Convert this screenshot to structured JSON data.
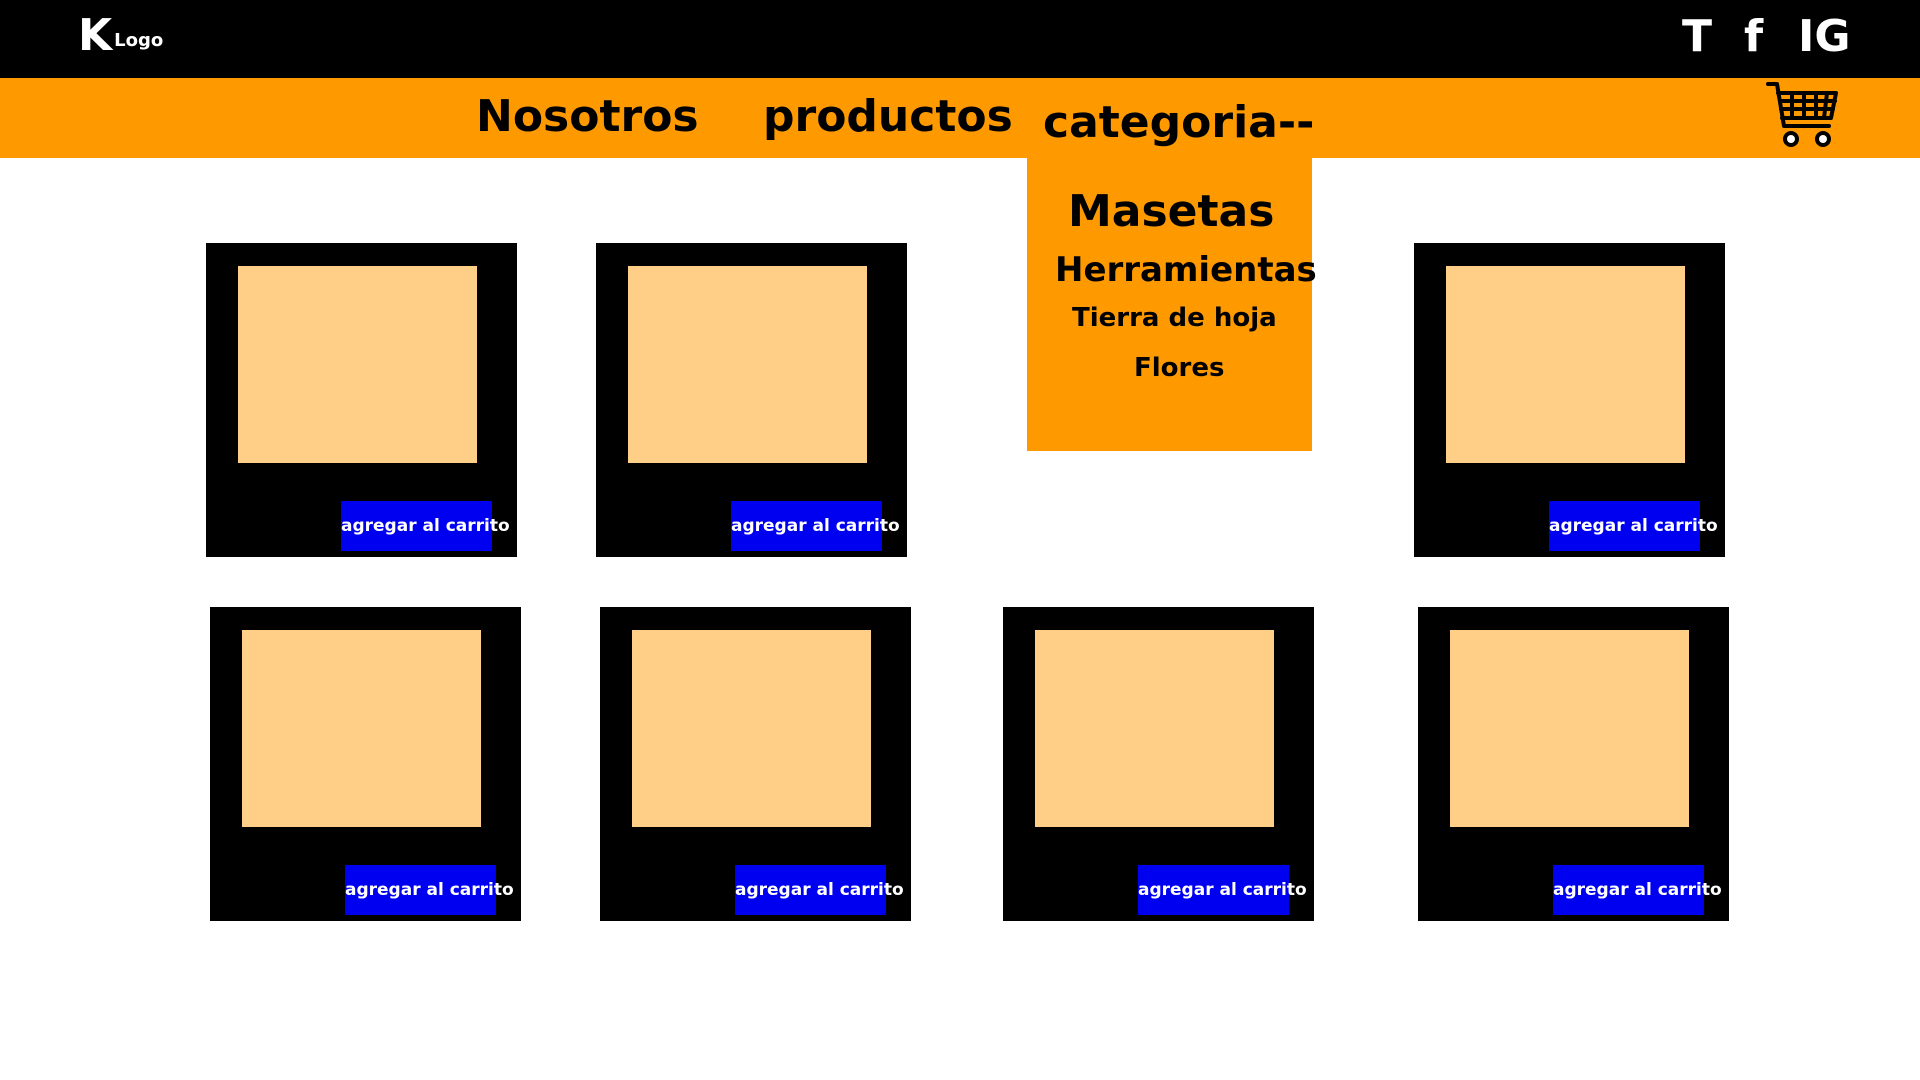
{
  "header": {
    "logo_mark": "K",
    "logo_text": "Logo",
    "social": {
      "t": "T",
      "f": "f",
      "ig": "IG"
    }
  },
  "nav": {
    "items": [
      "Nosotros",
      "productos",
      "categoria--"
    ],
    "cart_icon": "shopping-cart-icon"
  },
  "dropdown": {
    "items": [
      "Masetas",
      "Herramientas",
      "Tierra de hoja",
      "Flores"
    ]
  },
  "products": {
    "add_to_cart_label": "agregar al carrito"
  },
  "colors": {
    "topbar": "#000000",
    "nav": "#ff9900",
    "image_placeholder": "#ffcf87",
    "button": "#0000f0"
  }
}
